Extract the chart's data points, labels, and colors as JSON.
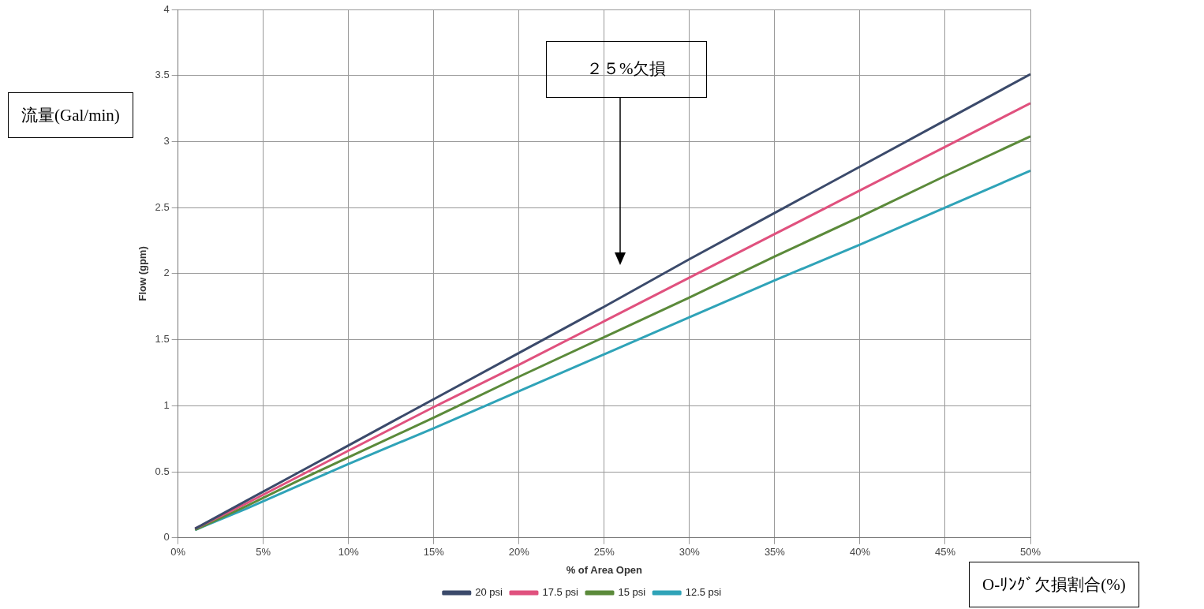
{
  "chart_data": {
    "type": "line",
    "xlabel": "% of Area Open",
    "ylabel": "Flow (gpm)",
    "x": [
      1,
      4,
      7,
      10,
      15,
      20,
      25,
      30,
      35,
      40,
      45,
      50
    ],
    "series": [
      {
        "name": "20 psi",
        "color": "#3b4a6b",
        "values": [
          0.07,
          0.28,
          0.49,
          0.7,
          1.05,
          1.4,
          1.75,
          2.11,
          2.46,
          2.81,
          3.16,
          3.51
        ]
      },
      {
        "name": "17.5 psi",
        "color": "#e0517e",
        "values": [
          0.07,
          0.26,
          0.46,
          0.66,
          0.99,
          1.31,
          1.64,
          1.97,
          2.3,
          2.63,
          2.96,
          3.29
        ]
      },
      {
        "name": "15 psi",
        "color": "#5b8a3a",
        "values": [
          0.06,
          0.24,
          0.43,
          0.61,
          0.91,
          1.22,
          1.52,
          1.82,
          2.13,
          2.43,
          2.74,
          3.04
        ]
      },
      {
        "name": "12.5 psi",
        "color": "#2fa3b8",
        "values": [
          0.06,
          0.22,
          0.39,
          0.56,
          0.83,
          1.11,
          1.39,
          1.67,
          1.95,
          2.22,
          2.5,
          2.78
        ]
      }
    ],
    "xlim": [
      0,
      50
    ],
    "xticks": [
      {
        "value": 0,
        "label": "0%"
      },
      {
        "value": 5,
        "label": "5%"
      },
      {
        "value": 10,
        "label": "10%"
      },
      {
        "value": 15,
        "label": "15%"
      },
      {
        "value": 20,
        "label": "20%"
      },
      {
        "value": 25,
        "label": "25%"
      },
      {
        "value": 30,
        "label": "30%"
      },
      {
        "value": 35,
        "label": "35%"
      },
      {
        "value": 40,
        "label": "40%"
      },
      {
        "value": 45,
        "label": "45%"
      },
      {
        "value": 50,
        "label": "50%"
      }
    ],
    "ylim": [
      0,
      4
    ],
    "yticks": [
      0,
      {
        "value": 0.5,
        "label": "0.5"
      },
      1,
      {
        "value": 1.5,
        "label": "1.5"
      },
      2,
      {
        "value": 2.5,
        "label": "2.5"
      },
      3,
      {
        "value": 3.5,
        "label": "3.5"
      },
      4
    ],
    "grid": true,
    "legend": "bottom",
    "marker": "none",
    "line_style": "solid",
    "annotations": [
      "２５%欠損",
      "流量(Gal/min)",
      "O-ﾘﾝｸﾞ欠損割合(%)"
    ]
  }
}
